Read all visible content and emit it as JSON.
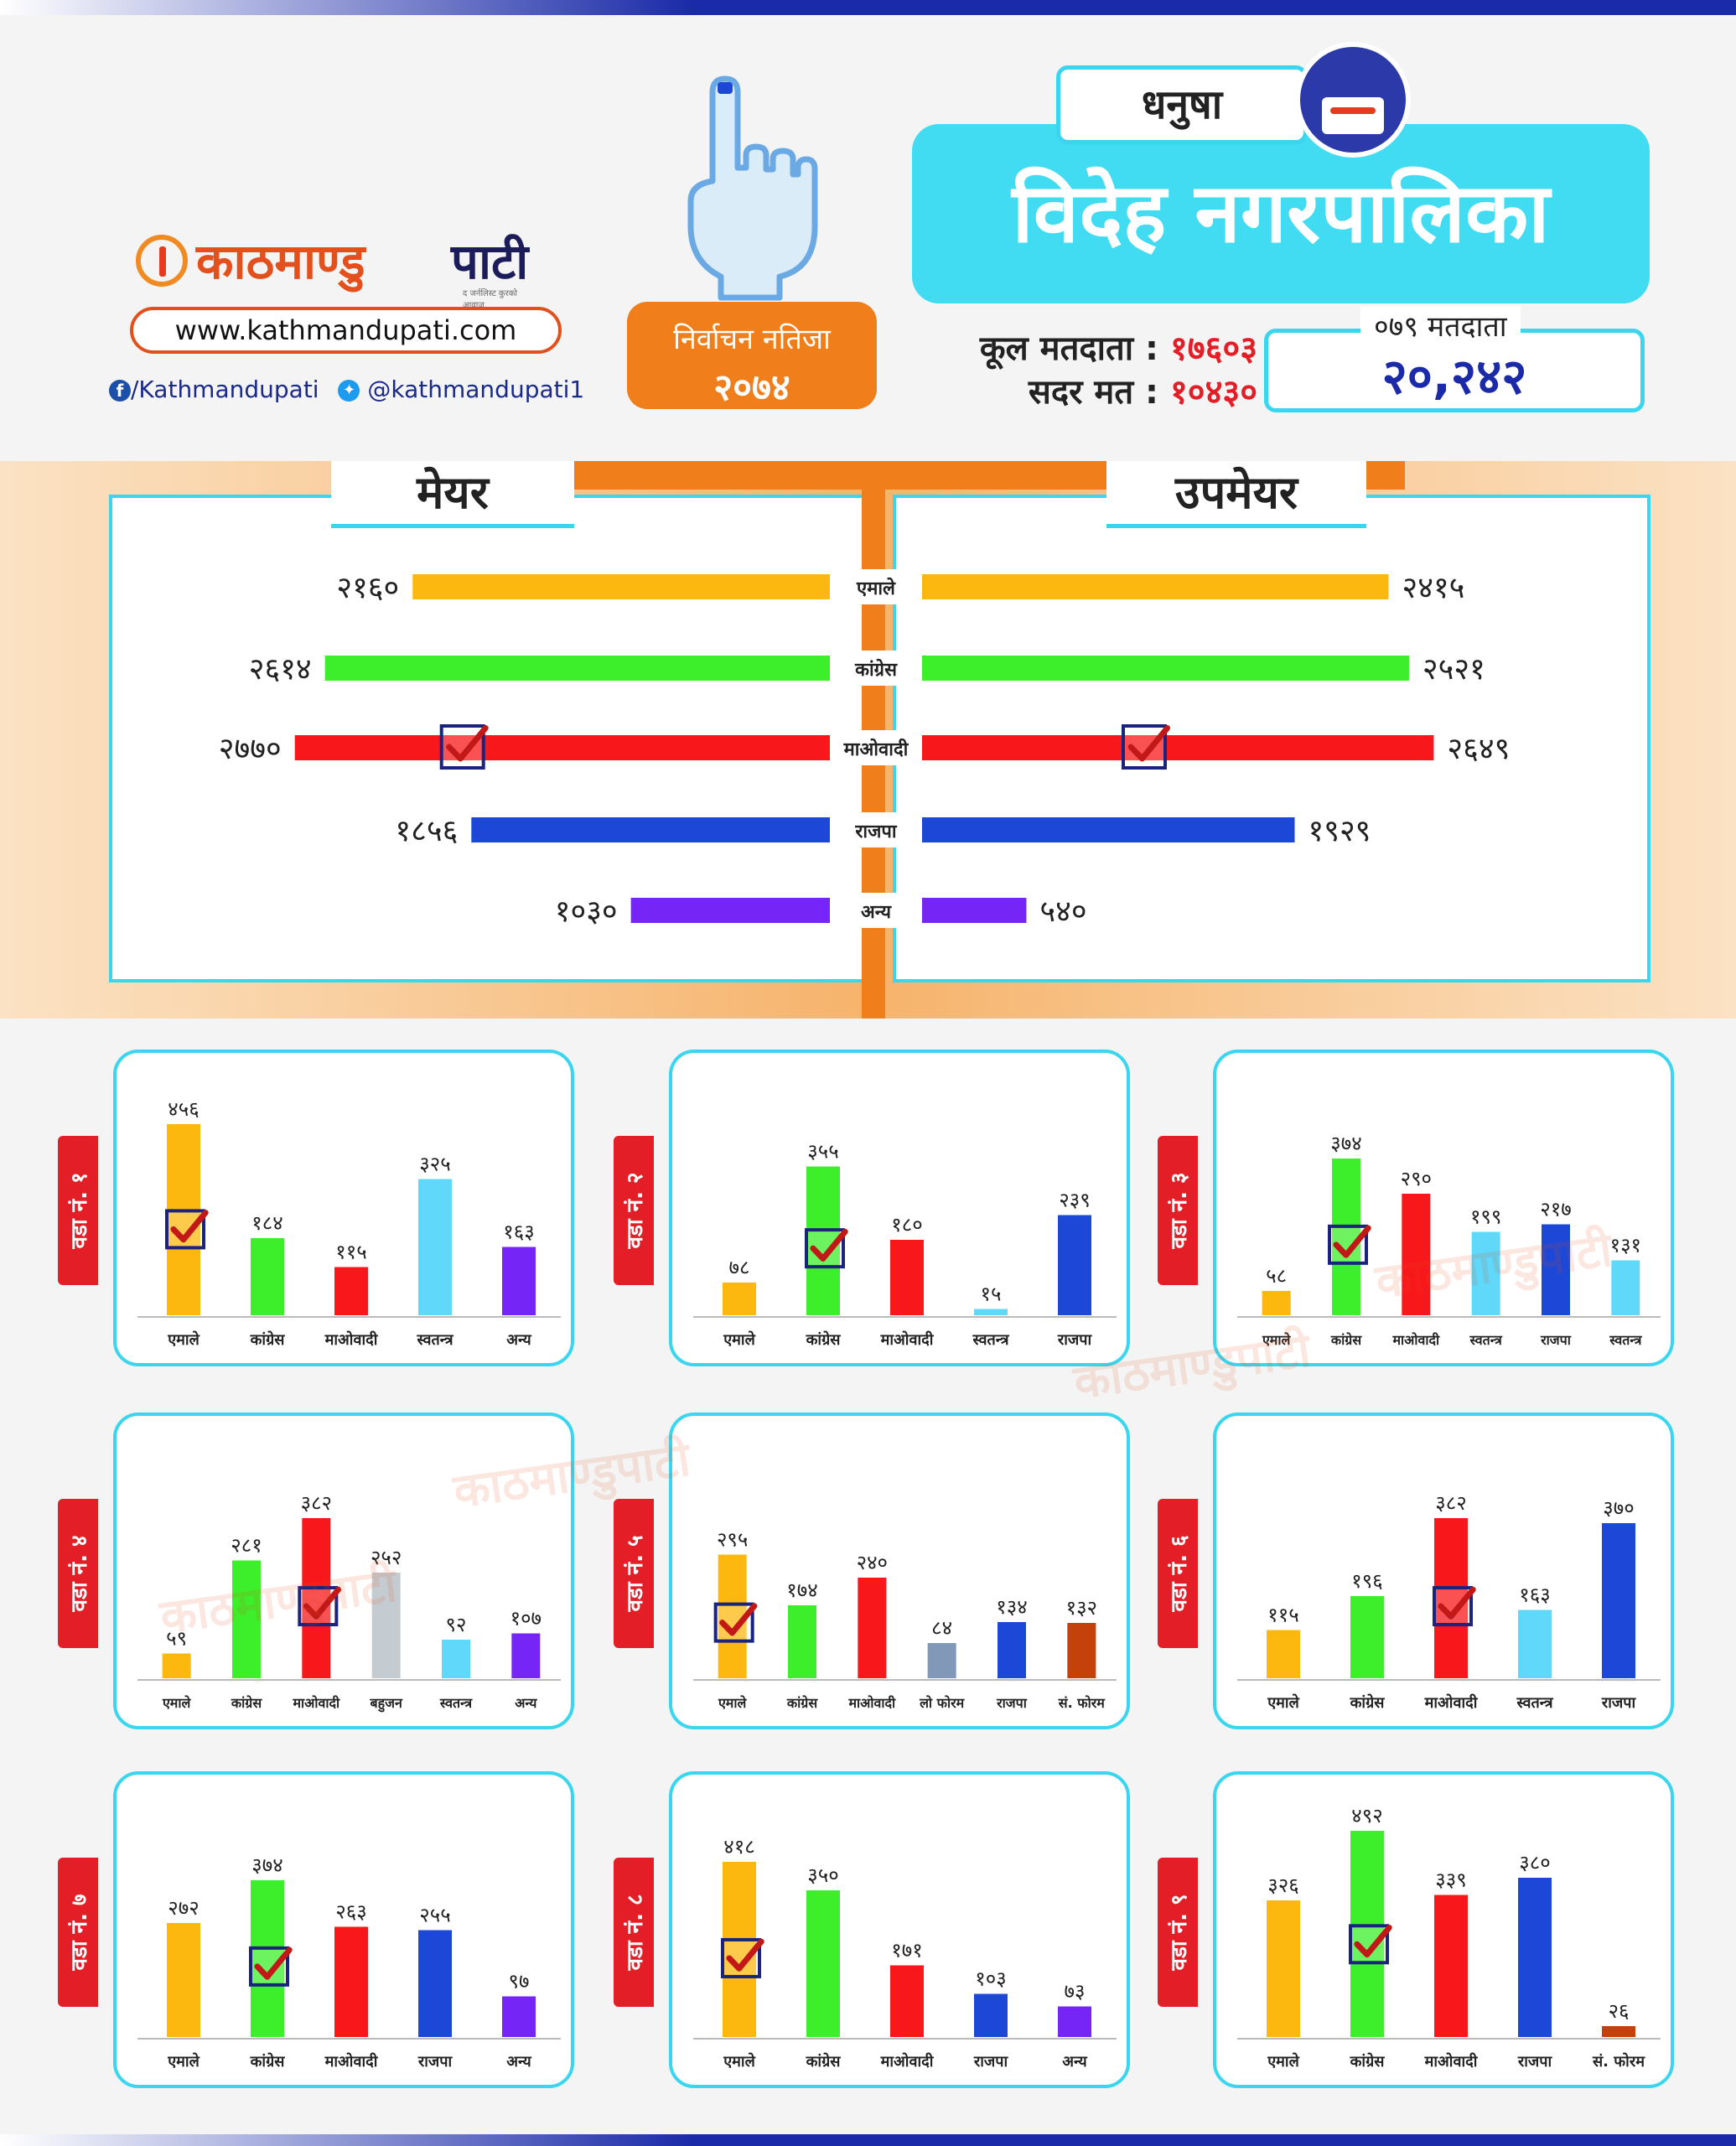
{
  "brand": {
    "name_part1": "काठमाण्डु",
    "name_part2": "पाटी",
    "tagline": "द जर्नलिस्ट कुरको आवाज",
    "url": "www.kathmandupati.com",
    "facebook": "/Kathmandupati",
    "twitter": "@kathmandupati1"
  },
  "badge": {
    "line1": "निर्वाचन नतिजा",
    "line2": "२०७४"
  },
  "district": "धनुषा",
  "municipality": "विदेह नगरपालिका",
  "voters": {
    "total_label": "कूल मतदाता :",
    "total_value": "१७६०३",
    "valid_label": "सदर मत :",
    "valid_value": "१०४३०",
    "box_label": "०७९ मतदाता",
    "box_value": "२०,२४२"
  },
  "colors": {
    "emale": "#fcb80f",
    "congress": "#3cef2a",
    "maoist": "#f8171a",
    "rajpa": "#1d47d6",
    "other": "#7525f5",
    "swatantra": "#5fd8fa",
    "bahujan": "#c5ccd1",
    "loforum": "#8298b8",
    "sforum": "#c4410c",
    "accent": "#3ad6ef",
    "orange": "#f07e1b",
    "red_tag": "#e41e26",
    "check": "#c21818",
    "checkbox": "#1a237e"
  },
  "icons": [
    "finger-icon",
    "ballot-box-icon",
    "facebook-icon",
    "twitter-icon",
    "check-icon",
    "brand-logo-icon"
  ],
  "watermark": "काठमाण्डुपाटी",
  "chart_data": [
    {
      "type": "bar",
      "title": "मेयर",
      "categories": [
        "एमाले",
        "कांग्रेस",
        "माओवादी",
        "राजपा",
        "अन्य"
      ],
      "values": [
        2160,
        2614,
        2770,
        1856,
        1030
      ],
      "value_labels": [
        "२१६०",
        "२६१४",
        "२७७०",
        "१८५६",
        "१०३०"
      ],
      "winner": "माओवादी"
    },
    {
      "type": "bar",
      "title": "उपमेयर",
      "categories": [
        "एमाले",
        "कांग्रेस",
        "माओवादी",
        "राजपा",
        "अन्य"
      ],
      "values": [
        2415,
        2521,
        2649,
        1929,
        540
      ],
      "value_labels": [
        "२४१५",
        "२५२१",
        "२६४९",
        "१९२९",
        "५४०"
      ],
      "winner": "माओवादी"
    },
    {
      "type": "bar",
      "title": "वडा नं. १",
      "categories": [
        "एमाले",
        "कांग्रेस",
        "माओवादी",
        "स्वतन्त्र",
        "अन्य"
      ],
      "values": [
        456,
        184,
        115,
        325,
        163
      ],
      "value_labels": [
        "४५६",
        "१८४",
        "११५",
        "३२५",
        "१६३"
      ],
      "winner": "एमाले"
    },
    {
      "type": "bar",
      "title": "वडा नं. २",
      "categories": [
        "एमाले",
        "कांग्रेस",
        "माओवादी",
        "स्वतन्त्र",
        "राजपा"
      ],
      "values": [
        78,
        355,
        180,
        15,
        239
      ],
      "value_labels": [
        "७८",
        "३५५",
        "१८०",
        "१५",
        "२३९"
      ],
      "winner": "कांग्रेस"
    },
    {
      "type": "bar",
      "title": "वडा नं. ३",
      "categories": [
        "एमाले",
        "कांग्रेस",
        "माओवादी",
        "स्वतन्त्र",
        "राजपा",
        "स्वतन्त्र"
      ],
      "values": [
        58,
        374,
        290,
        199,
        217,
        131
      ],
      "value_labels": [
        "५८",
        "३७४",
        "२९०",
        "१९९",
        "२१७",
        "१३१"
      ],
      "winner": "कांग्रेस"
    },
    {
      "type": "bar",
      "title": "वडा नं. ४",
      "categories": [
        "एमाले",
        "कांग्रेस",
        "माओवादी",
        "बहुजन",
        "स्वतन्त्र",
        "अन्य"
      ],
      "values": [
        59,
        281,
        382,
        252,
        92,
        107
      ],
      "value_labels": [
        "५९",
        "२८१",
        "३८२",
        "२५२",
        "९२",
        "१०७"
      ],
      "winner": "माओवादी"
    },
    {
      "type": "bar",
      "title": "वडा नं. ५",
      "categories": [
        "एमाले",
        "कांग्रेस",
        "माओवादी",
        "लो फोरम",
        "राजपा",
        "सं. फोरम"
      ],
      "values": [
        295,
        174,
        240,
        84,
        134,
        132
      ],
      "value_labels": [
        "२९५",
        "१७४",
        "२४०",
        "८४",
        "१३४",
        "१३२"
      ],
      "winner": "एमाले"
    },
    {
      "type": "bar",
      "title": "वडा नं. ६",
      "categories": [
        "एमाले",
        "कांग्रेस",
        "माओवादी",
        "स्वतन्त्र",
        "राजपा"
      ],
      "values": [
        115,
        196,
        382,
        163,
        370
      ],
      "value_labels": [
        "११५",
        "१९६",
        "३८२",
        "१६३",
        "३७०"
      ],
      "winner": "माओवादी"
    },
    {
      "type": "bar",
      "title": "वडा नं. ७",
      "categories": [
        "एमाले",
        "कांग्रेस",
        "माओवादी",
        "राजपा",
        "अन्य"
      ],
      "values": [
        272,
        374,
        263,
        255,
        97
      ],
      "value_labels": [
        "२७२",
        "३७४",
        "२६३",
        "२५५",
        "९७"
      ],
      "winner": "कांग्रेस"
    },
    {
      "type": "bar",
      "title": "वडा नं. ८",
      "categories": [
        "एमाले",
        "कांग्रेस",
        "माओवादी",
        "राजपा",
        "अन्य"
      ],
      "values": [
        418,
        350,
        171,
        103,
        73
      ],
      "value_labels": [
        "४१८",
        "३५०",
        "१७१",
        "१०३",
        "७३"
      ],
      "winner": "एमाले"
    },
    {
      "type": "bar",
      "title": "वडा नं. ९",
      "categories": [
        "एमाले",
        "कांग्रेस",
        "माओवादी",
        "राजपा",
        "सं. फोरम"
      ],
      "values": [
        326,
        492,
        339,
        380,
        26
      ],
      "value_labels": [
        "३२६",
        "४९२",
        "३३९",
        "३८०",
        "२६"
      ],
      "winner": "कांग्रेस"
    }
  ]
}
